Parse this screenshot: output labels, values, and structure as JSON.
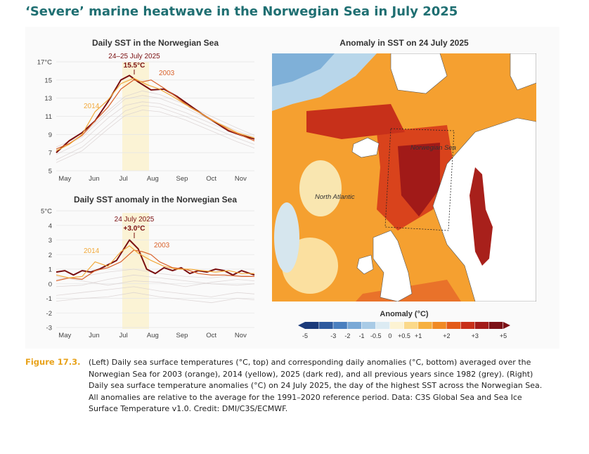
{
  "page": {
    "title": "‘Severe’ marine heatwave in the Norwegian Sea in July 2025",
    "figure_label": "Figure 17.3.",
    "caption": "(Left) Daily sea surface temperatures (°C, top) and corresponding daily anomalies (°C, bottom) averaged over the Norwegian Sea for 2003 (orange), 2014 (yellow), 2025 (dark red), and all previous years since 1982 (grey). (Right) Daily sea surface temperature anomalies (°C) on 24 July 2025, the day of the highest SST across the Norwegian Sea. All anomalies are relative to the average for the 1991–2020 reference period. Data: C3S Global Sea and Sea Ice Surface Temperature v1.0. Credit: DMI/C3S/ECMWF."
  },
  "colors": {
    "y2025": "#7a0f10",
    "y2003": "#d9622b",
    "y2014": "#f2a93b",
    "grey": "#d8cfcf",
    "highlight": "#fbf3d5",
    "title": "#1f6f72"
  },
  "chart_data": [
    {
      "type": "line",
      "title": "Daily SST in the Norwegian Sea",
      "x_ticks": [
        "May",
        "Jun",
        "Jul",
        "Aug",
        "Sep",
        "Oct",
        "Nov"
      ],
      "y_ticks": [
        "17°C",
        "15",
        "13",
        "11",
        "9",
        "7",
        "5"
      ],
      "ylim": [
        5,
        17
      ],
      "highlight_period": "24–25 July 2025",
      "annotation": {
        "label": "24–25 July 2025",
        "value": "15.5°C"
      },
      "series": [
        {
          "name": "2025",
          "color": "#7a0f10",
          "values": [
            [
              0,
              7.0
            ],
            [
              15,
              8.3
            ],
            [
              30,
              9.2
            ],
            [
              45,
              10.5
            ],
            [
              60,
              12.6
            ],
            [
              75,
              15.0
            ],
            [
              85,
              15.5
            ],
            [
              95,
              14.8
            ],
            [
              110,
              13.9
            ],
            [
              125,
              14.0
            ],
            [
              140,
              13.2
            ],
            [
              155,
              12.2
            ],
            [
              170,
              11.2
            ],
            [
              185,
              10.3
            ],
            [
              200,
              9.4
            ],
            [
              215,
              8.9
            ],
            [
              230,
              8.5
            ]
          ]
        },
        {
          "name": "2003",
          "color": "#d9622b",
          "values": [
            [
              0,
              7.4
            ],
            [
              15,
              8.0
            ],
            [
              30,
              8.9
            ],
            [
              45,
              10.5
            ],
            [
              60,
              12.0
            ],
            [
              75,
              14.0
            ],
            [
              90,
              15.0
            ],
            [
              100,
              14.8
            ],
            [
              110,
              15.0
            ],
            [
              125,
              14.1
            ],
            [
              140,
              13.1
            ],
            [
              155,
              12.0
            ],
            [
              170,
              11.2
            ],
            [
              185,
              10.4
            ],
            [
              200,
              9.5
            ],
            [
              215,
              8.9
            ],
            [
              230,
              8.3
            ]
          ]
        },
        {
          "name": "2014",
          "color": "#f2a93b",
          "values": [
            [
              0,
              7.2
            ],
            [
              15,
              7.9
            ],
            [
              30,
              9.0
            ],
            [
              45,
              11.5
            ],
            [
              60,
              12.8
            ],
            [
              75,
              14.6
            ],
            [
              90,
              15.2
            ],
            [
              105,
              14.5
            ],
            [
              120,
              14.0
            ],
            [
              135,
              13.2
            ],
            [
              150,
              12.3
            ],
            [
              165,
              11.5
            ],
            [
              180,
              10.6
            ],
            [
              195,
              9.9
            ],
            [
              210,
              9.2
            ],
            [
              230,
              8.6
            ]
          ]
        },
        {
          "name": "",
          "color": "#d8cfcf",
          "values": [
            [
              0,
              6.8
            ],
            [
              30,
              8.2
            ],
            [
              60,
              10.8
            ],
            [
              80,
              12.2
            ],
            [
              100,
              12.6
            ],
            [
              120,
              12.4
            ],
            [
              150,
              11.4
            ],
            [
              180,
              10.2
            ],
            [
              210,
              9.0
            ],
            [
              230,
              8.3
            ]
          ]
        },
        {
          "name": "",
          "color": "#d8cfcf",
          "values": [
            [
              0,
              6.2
            ],
            [
              30,
              7.6
            ],
            [
              60,
              10.0
            ],
            [
              80,
              11.6
            ],
            [
              100,
              12.2
            ],
            [
              120,
              12.0
            ],
            [
              150,
              11.0
            ],
            [
              180,
              9.8
            ],
            [
              210,
              8.6
            ],
            [
              230,
              7.9
            ]
          ]
        },
        {
          "name": "",
          "color": "#d8cfcf",
          "values": [
            [
              0,
              7.3
            ],
            [
              30,
              8.7
            ],
            [
              60,
              11.3
            ],
            [
              80,
              12.9
            ],
            [
              100,
              13.3
            ],
            [
              120,
              13.0
            ],
            [
              150,
              11.9
            ],
            [
              180,
              10.6
            ],
            [
              210,
              9.4
            ],
            [
              230,
              8.7
            ]
          ]
        },
        {
          "name": "",
          "color": "#d8cfcf",
          "values": [
            [
              0,
              5.9
            ],
            [
              30,
              7.2
            ],
            [
              60,
              9.6
            ],
            [
              80,
              11.1
            ],
            [
              100,
              11.7
            ],
            [
              120,
              11.5
            ],
            [
              150,
              10.6
            ],
            [
              180,
              9.4
            ],
            [
              210,
              8.2
            ],
            [
              230,
              7.5
            ]
          ]
        },
        {
          "name": "",
          "color": "#d8cfcf",
          "values": [
            [
              0,
              7.6
            ],
            [
              30,
              8.9
            ],
            [
              60,
              11.6
            ],
            [
              80,
              13.2
            ],
            [
              100,
              13.8
            ],
            [
              120,
              13.4
            ],
            [
              150,
              12.3
            ],
            [
              180,
              11.0
            ],
            [
              210,
              9.7
            ],
            [
              230,
              8.9
            ]
          ]
        }
      ]
    },
    {
      "type": "line",
      "title": "Daily SST anomaly in the Norwegian Sea",
      "x_ticks": [
        "May",
        "Jun",
        "Jul",
        "Aug",
        "Sep",
        "Oct",
        "Nov"
      ],
      "y_ticks": [
        "5°C",
        "4",
        "3",
        "2",
        "1",
        "0",
        "-1",
        "-2",
        "-3"
      ],
      "ylim": [
        -3,
        5
      ],
      "annotation": {
        "label": "24 July 2025",
        "value": "+3.0°C"
      },
      "series": [
        {
          "name": "2025",
          "color": "#7a0f10",
          "values": [
            [
              0,
              0.8
            ],
            [
              10,
              0.9
            ],
            [
              20,
              0.6
            ],
            [
              30,
              0.9
            ],
            [
              40,
              0.8
            ],
            [
              50,
              1.0
            ],
            [
              60,
              1.3
            ],
            [
              70,
              1.6
            ],
            [
              85,
              3.0
            ],
            [
              95,
              2.4
            ],
            [
              105,
              1.0
            ],
            [
              115,
              0.7
            ],
            [
              125,
              1.1
            ],
            [
              135,
              0.9
            ],
            [
              145,
              1.1
            ],
            [
              155,
              0.7
            ],
            [
              165,
              0.9
            ],
            [
              175,
              0.8
            ],
            [
              185,
              1.0
            ],
            [
              195,
              0.9
            ],
            [
              205,
              0.6
            ],
            [
              215,
              0.9
            ],
            [
              230,
              0.6
            ]
          ]
        },
        {
          "name": "2003",
          "color": "#d9622b",
          "values": [
            [
              0,
              0.2
            ],
            [
              15,
              0.4
            ],
            [
              30,
              0.3
            ],
            [
              45,
              0.9
            ],
            [
              60,
              1.1
            ],
            [
              75,
              1.5
            ],
            [
              90,
              2.3
            ],
            [
              100,
              2.2
            ],
            [
              110,
              2.0
            ],
            [
              120,
              1.5
            ],
            [
              135,
              1.1
            ],
            [
              150,
              1.0
            ],
            [
              165,
              0.7
            ],
            [
              180,
              0.6
            ],
            [
              195,
              0.6
            ],
            [
              215,
              0.5
            ],
            [
              230,
              0.5
            ]
          ]
        },
        {
          "name": "2014",
          "color": "#f2a93b",
          "values": [
            [
              0,
              0.6
            ],
            [
              15,
              0.4
            ],
            [
              30,
              0.5
            ],
            [
              45,
              1.5
            ],
            [
              60,
              1.2
            ],
            [
              75,
              2.2
            ],
            [
              85,
              2.6
            ],
            [
              95,
              2.1
            ],
            [
              110,
              1.6
            ],
            [
              125,
              1.2
            ],
            [
              140,
              1.0
            ],
            [
              155,
              1.0
            ],
            [
              170,
              0.9
            ],
            [
              185,
              0.8
            ],
            [
              200,
              0.9
            ],
            [
              215,
              0.7
            ],
            [
              230,
              0.7
            ]
          ]
        },
        {
          "name": "",
          "color": "#d8cfcf",
          "values": [
            [
              0,
              -0.2
            ],
            [
              30,
              -0.1
            ],
            [
              60,
              0.3
            ],
            [
              90,
              0.6
            ],
            [
              120,
              0.4
            ],
            [
              150,
              0.2
            ],
            [
              180,
              0.0
            ],
            [
              210,
              -0.1
            ],
            [
              230,
              0.0
            ]
          ]
        },
        {
          "name": "",
          "color": "#d8cfcf",
          "values": [
            [
              0,
              -0.8
            ],
            [
              30,
              -0.6
            ],
            [
              60,
              -0.4
            ],
            [
              90,
              -0.2
            ],
            [
              120,
              -0.5
            ],
            [
              150,
              -0.7
            ],
            [
              180,
              -0.9
            ],
            [
              210,
              -0.6
            ],
            [
              230,
              -0.7
            ]
          ]
        },
        {
          "name": "",
          "color": "#d8cfcf",
          "values": [
            [
              0,
              0.3
            ],
            [
              30,
              0.5
            ],
            [
              60,
              0.8
            ],
            [
              90,
              1.0
            ],
            [
              120,
              0.7
            ],
            [
              150,
              0.5
            ],
            [
              180,
              0.4
            ],
            [
              210,
              0.6
            ],
            [
              230,
              0.5
            ]
          ]
        },
        {
          "name": "",
          "color": "#d8cfcf",
          "values": [
            [
              0,
              -1.2
            ],
            [
              30,
              -1.0
            ],
            [
              60,
              -0.9
            ],
            [
              90,
              -0.6
            ],
            [
              120,
              -0.9
            ],
            [
              150,
              -1.1
            ],
            [
              180,
              -1.3
            ],
            [
              210,
              -1.0
            ],
            [
              230,
              -1.1
            ]
          ]
        },
        {
          "name": "",
          "color": "#d8cfcf",
          "values": [
            [
              0,
              0.5
            ],
            [
              30,
              0.2
            ],
            [
              60,
              -0.1
            ],
            [
              90,
              0.2
            ],
            [
              120,
              0.1
            ],
            [
              150,
              -0.2
            ],
            [
              180,
              0.1
            ],
            [
              210,
              0.3
            ],
            [
              230,
              0.2
            ]
          ]
        }
      ]
    },
    {
      "type": "heatmap",
      "title": "Anomaly in SST on 24 July 2025",
      "labels": [
        "Norwegian Sea",
        "North Atlantic"
      ],
      "colorbar_title": "Anomaly (°C)",
      "colorbar_ticks": [
        "-5",
        "-3",
        "-2",
        "-1",
        "-0.5",
        "0",
        "+0.5",
        "+1",
        "+2",
        "+3",
        "+5"
      ],
      "colorbar_colors": [
        "#1b3a7a",
        "#2e5a9e",
        "#4a7fbf",
        "#7aa9d6",
        "#a9cbe6",
        "#dcebf3",
        "#fdf3d3",
        "#fbd98a",
        "#f6b040",
        "#f08a24",
        "#e35b19",
        "#c8301a",
        "#a31c1a",
        "#7c1016"
      ]
    }
  ]
}
